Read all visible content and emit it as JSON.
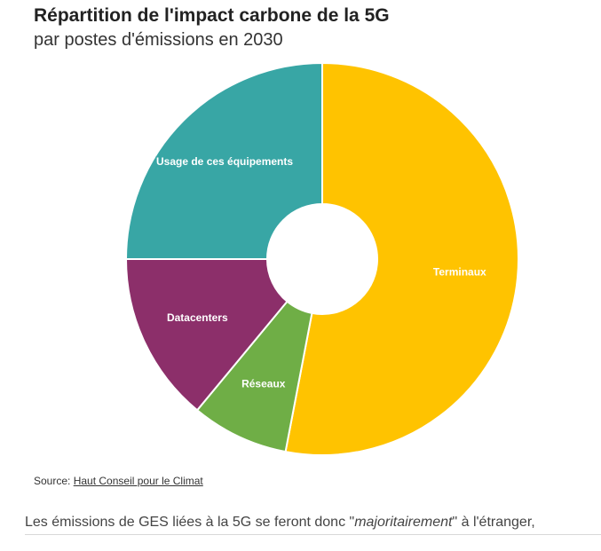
{
  "chart": {
    "title": "Répartition de l'impact carbone de la 5G",
    "subtitle": "par postes d'émissions en 2030"
  },
  "chart_data": {
    "type": "pie",
    "donut": true,
    "categories": [
      "Terminaux",
      "Réseaux",
      "Datacenters",
      "Usage de ces équipements"
    ],
    "values": [
      53,
      8,
      14,
      25
    ],
    "colors": [
      "#FFC300",
      "#6FAE46",
      "#8C2F6A",
      "#38A6A5"
    ],
    "start_angle_deg": 0,
    "direction": "clockwise"
  },
  "source": {
    "label": "Source:",
    "link_text": "Haut Conseil pour le Climat"
  },
  "article": {
    "text_before": "Les émissions de GES liées à la 5G se feront donc \"",
    "emphasis": "majoritairement",
    "text_after": "\" à l'étranger,"
  }
}
